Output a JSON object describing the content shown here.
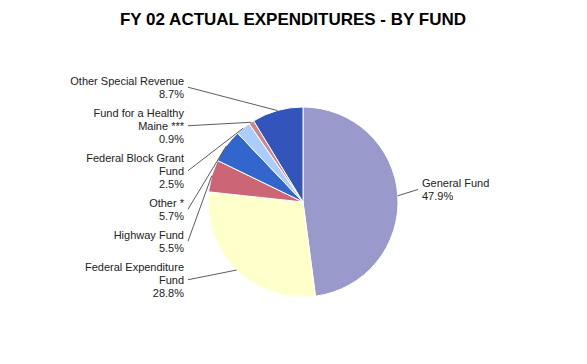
{
  "chart_data": {
    "type": "pie",
    "title": "FY 02 ACTUAL EXPENDITURES - BY FUND",
    "categories": [
      "General Fund",
      "Federal Expenditure\nFund",
      "Highway Fund",
      "Other *",
      "Federal Block Grant\nFund",
      "Fund for a Healthy\nMaine ***",
      "Other Special Revenue"
    ],
    "values": [
      47.9,
      28.8,
      5.5,
      5.7,
      2.5,
      0.9,
      8.7
    ],
    "value_labels": [
      "47.9%",
      "28.8%",
      "5.5%",
      "5.7%",
      "2.5%",
      "0.9%",
      "8.7%"
    ],
    "colors": [
      "#9999cc",
      "#ffffcc",
      "#cc6677",
      "#3366cc",
      "#aaccff",
      "#cc8888",
      "#3355bb"
    ],
    "data_labels": true
  }
}
